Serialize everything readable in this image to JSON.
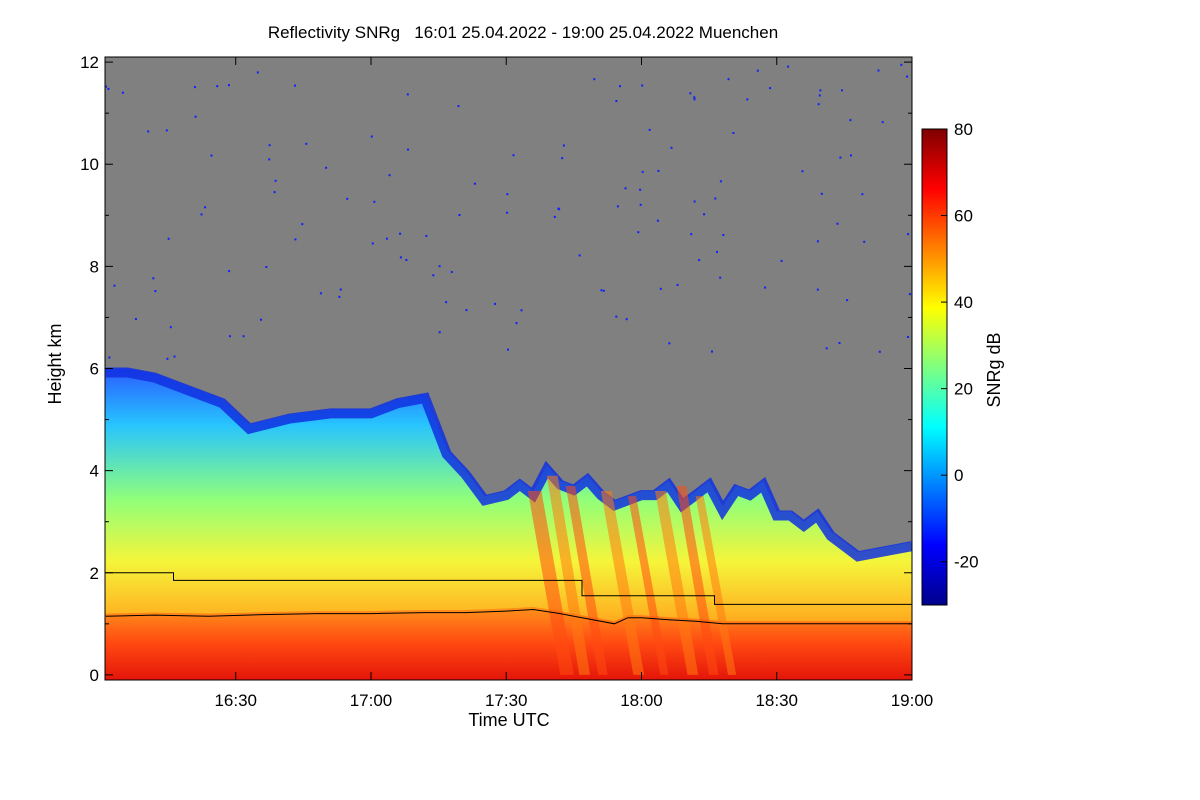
{
  "chart_data": {
    "type": "heatmap",
    "title": "Reflectivity SNRg   16:01 25.04.2022 - 19:00 25.04.2022 Muenchen",
    "xlabel": "Time UTC",
    "ylabel": "Height km",
    "xlim": [
      16.0167,
      19.0
    ],
    "ylim": [
      -0.1,
      12.1
    ],
    "x_ticks": [
      {
        "value": 16.5,
        "label": "16:30"
      },
      {
        "value": 17.0,
        "label": "17:00"
      },
      {
        "value": 17.5,
        "label": "17:30"
      },
      {
        "value": 18.0,
        "label": "18:00"
      },
      {
        "value": 18.5,
        "label": "18:30"
      },
      {
        "value": 19.0,
        "label": "19:00"
      }
    ],
    "y_ticks": [
      {
        "value": 0,
        "label": "0"
      },
      {
        "value": 2,
        "label": "2"
      },
      {
        "value": 4,
        "label": "4"
      },
      {
        "value": 6,
        "label": "6"
      },
      {
        "value": 8,
        "label": "8"
      },
      {
        "value": 10,
        "label": "10"
      },
      {
        "value": 12,
        "label": "12"
      }
    ],
    "colorbar": {
      "label": "SNRg dB",
      "range": [
        -30,
        80
      ],
      "ticks": [
        {
          "value": 80,
          "label": "80"
        },
        {
          "value": 60,
          "label": "60"
        },
        {
          "value": 40,
          "label": "40"
        },
        {
          "value": 20,
          "label": "20"
        },
        {
          "value": 0,
          "label": "0"
        },
        {
          "value": -20,
          "label": "-20"
        }
      ],
      "colors": [
        "#00008b",
        "#0000ff",
        "#007fff",
        "#00ffff",
        "#7fff7f",
        "#ffff00",
        "#ff7f00",
        "#ff0000",
        "#7f0000"
      ]
    },
    "background_color": "#808080",
    "cloud_top_km": {
      "times": [
        16.02,
        16.1,
        16.2,
        16.25,
        16.35,
        16.45,
        16.55,
        16.7,
        16.85,
        17.0,
        17.1,
        17.2,
        17.28,
        17.35,
        17.42,
        17.5,
        17.55,
        17.6,
        17.65,
        17.7,
        17.75,
        17.8,
        17.85,
        17.9,
        17.95,
        18.0,
        18.05,
        18.1,
        18.15,
        18.2,
        18.25,
        18.3,
        18.35,
        18.4,
        18.45,
        18.5,
        18.55,
        18.6,
        18.65,
        18.7,
        18.8,
        18.9,
        19.0
      ],
      "heights": [
        6.0,
        6.0,
        5.9,
        5.8,
        5.6,
        5.4,
        4.9,
        5.1,
        5.2,
        5.2,
        5.4,
        5.5,
        4.4,
        4.0,
        3.5,
        3.6,
        3.8,
        3.6,
        4.1,
        3.8,
        3.7,
        3.9,
        3.6,
        3.4,
        3.5,
        3.6,
        3.6,
        3.8,
        3.4,
        3.6,
        3.8,
        3.3,
        3.7,
        3.6,
        3.8,
        3.2,
        3.2,
        3.0,
        3.2,
        2.8,
        2.4,
        2.5,
        2.6
      ]
    },
    "series": [
      {
        "name": "step-line",
        "color": "#000000",
        "times": [
          16.02,
          16.27,
          16.27,
          17.78,
          17.78,
          18.27,
          18.27,
          19.0
        ],
        "heights": [
          2.0,
          2.0,
          1.85,
          1.85,
          1.55,
          1.55,
          1.38,
          1.38
        ]
      },
      {
        "name": "boundary-layer-line",
        "color": "#000000",
        "times": [
          16.02,
          16.2,
          16.4,
          16.6,
          16.8,
          17.0,
          17.2,
          17.35,
          17.5,
          17.6,
          17.7,
          17.75,
          17.8,
          17.9,
          17.95,
          18.0,
          18.1,
          18.2,
          18.3,
          18.5,
          18.7,
          19.0
        ],
        "heights": [
          1.15,
          1.17,
          1.15,
          1.18,
          1.2,
          1.2,
          1.22,
          1.22,
          1.25,
          1.28,
          1.2,
          1.15,
          1.1,
          1.0,
          1.12,
          1.12,
          1.08,
          1.05,
          1.0,
          1.0,
          1.0,
          1.0
        ]
      }
    ]
  }
}
